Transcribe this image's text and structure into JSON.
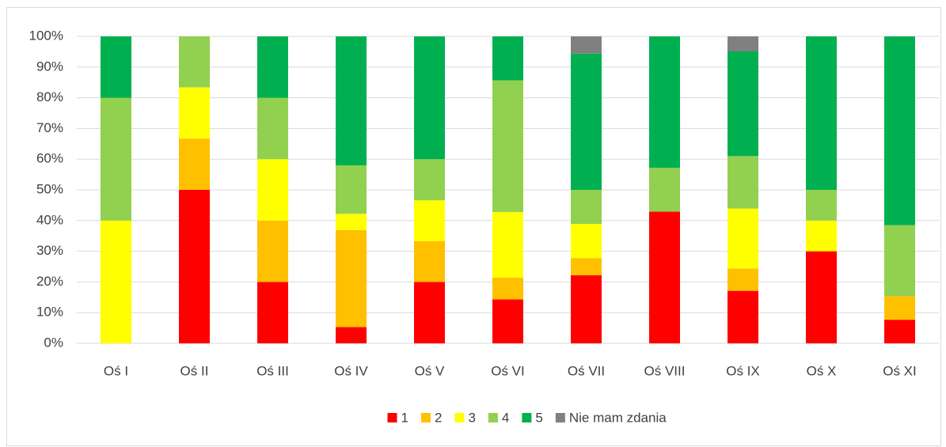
{
  "chart_data": {
    "type": "stacked_bar",
    "categories": [
      "Oś I",
      "Oś II",
      "Oś III",
      "Oś IV",
      "Oś V",
      "Oś VI",
      "Oś VII",
      "Oś VIII",
      "Oś IX",
      "Oś X",
      "Oś XI"
    ],
    "series": [
      {
        "name": "1",
        "color": "#ff0000",
        "values": [
          0,
          50,
          20,
          5.3,
          20,
          14.3,
          22.2,
          42.9,
          17.1,
          30,
          7.7
        ]
      },
      {
        "name": "2",
        "color": "#ffc000",
        "values": [
          0,
          16.7,
          20,
          31.6,
          13.3,
          7.1,
          5.6,
          0,
          7.3,
          0,
          7.7
        ]
      },
      {
        "name": "3",
        "color": "#ffff00",
        "values": [
          40,
          16.7,
          20,
          5.3,
          13.3,
          21.4,
          11.1,
          0,
          19.5,
          10,
          0
        ]
      },
      {
        "name": "4",
        "color": "#92d050",
        "values": [
          40,
          16.6,
          20,
          15.8,
          13.4,
          42.9,
          11.1,
          14.3,
          17.1,
          10,
          23.1
        ]
      },
      {
        "name": "5",
        "color": "#00b050",
        "values": [
          20,
          0,
          20,
          42,
          40,
          14.3,
          44.4,
          42.8,
          34.1,
          50,
          61.5
        ]
      },
      {
        "name": "Nie mam zdania",
        "color": "#808080",
        "values": [
          0,
          0,
          0,
          0,
          0,
          0,
          5.6,
          0,
          4.9,
          0,
          0
        ]
      }
    ],
    "ylim": [
      0,
      100
    ],
    "yticks": [
      {
        "value": 0,
        "label": "0%"
      },
      {
        "value": 10,
        "label": "10%"
      },
      {
        "value": 20,
        "label": "20%"
      },
      {
        "value": 30,
        "label": "30%"
      },
      {
        "value": 40,
        "label": "40%"
      },
      {
        "value": 50,
        "label": "50%"
      },
      {
        "value": 60,
        "label": "60%"
      },
      {
        "value": 70,
        "label": "70%"
      },
      {
        "value": 80,
        "label": "80%"
      },
      {
        "value": 90,
        "label": "90%"
      },
      {
        "value": 100,
        "label": "100%"
      }
    ],
    "legend": "bottom"
  }
}
